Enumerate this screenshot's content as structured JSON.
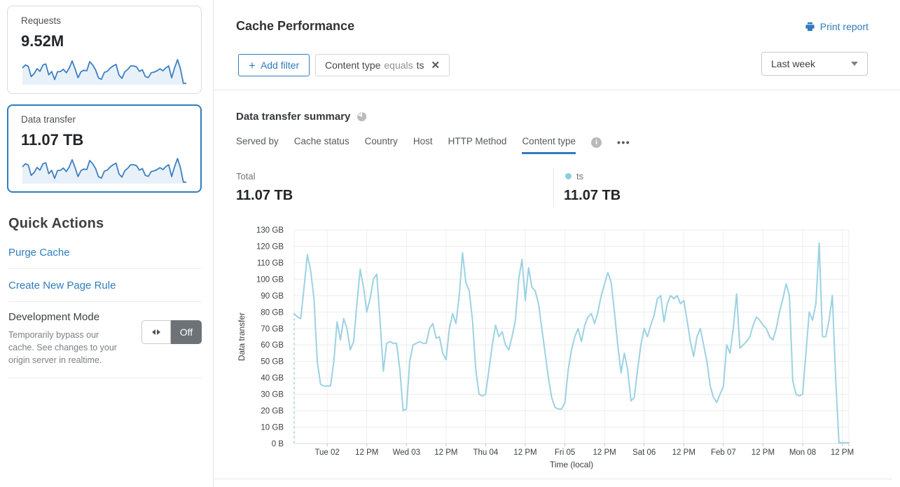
{
  "sidebar": {
    "metric_cards": [
      {
        "label": "Requests",
        "value": "9.52M",
        "sparkline": [
          79,
          95,
          88,
          35,
          50,
          76,
          62,
          95,
          100,
          44,
          61,
          20,
          60,
          61,
          73,
          55,
          79,
          116,
          75,
          29,
          60,
          68,
          65,
          112,
          95,
          70,
          28,
          21,
          57,
          62,
          79,
          90,
          98,
          43,
          26,
          60,
          72,
          90,
          90,
          85,
          62,
          70,
          35,
          30,
          55,
          58,
          65,
          75,
          65,
          80,
          90,
          29,
          80,
          122,
          75,
          0.5,
          0.5
        ]
      },
      {
        "label": "Data transfer",
        "value": "11.07 TB",
        "selected": true,
        "sparkline": [
          79,
          95,
          88,
          35,
          50,
          76,
          62,
          95,
          100,
          44,
          61,
          20,
          60,
          61,
          73,
          55,
          79,
          116,
          75,
          29,
          60,
          68,
          65,
          112,
          95,
          70,
          28,
          21,
          57,
          62,
          79,
          90,
          98,
          43,
          26,
          60,
          72,
          90,
          90,
          85,
          62,
          70,
          35,
          30,
          55,
          58,
          65,
          75,
          65,
          80,
          90,
          29,
          80,
          122,
          75,
          0.5,
          0.5
        ]
      }
    ],
    "quick_actions": {
      "title": "Quick Actions",
      "links": [
        {
          "label": "Purge Cache"
        },
        {
          "label": "Create New Page Rule"
        }
      ],
      "dev_mode": {
        "label": "Development Mode",
        "description": "Temporarily bypass our cache. See changes to your origin server in realtime.",
        "toggle_state": "Off"
      }
    }
  },
  "header": {
    "title": "Cache Performance",
    "print_label": "Print report",
    "time_range": "Last week"
  },
  "filters": {
    "plus": "+",
    "add_label": "Add filter",
    "chip": {
      "field": "Content type",
      "operator": "equals",
      "value": "ts",
      "close": "✕"
    }
  },
  "summary": {
    "title": "Data transfer summary",
    "tabs": [
      {
        "label": "Served by"
      },
      {
        "label": "Cache status"
      },
      {
        "label": "Country"
      },
      {
        "label": "Host"
      },
      {
        "label": "HTTP Method"
      },
      {
        "label": "Content type",
        "active": true
      }
    ],
    "info_glyph": "i",
    "more_label": "•••",
    "total_label": "Total",
    "total_value": "11.07 TB",
    "legend": {
      "series": "ts",
      "value": "11.07 TB",
      "color": "#8fccdf"
    }
  },
  "chart_data": {
    "type": "line",
    "title": "Data transfer summary",
    "series_name": "ts",
    "xlabel": "Time (local)",
    "ylabel": "Data transfer",
    "unit": "GB",
    "ylim": [
      0,
      130
    ],
    "grid": true,
    "y_tick_labels": [
      "0 B",
      "10 GB",
      "20 GB",
      "30 GB",
      "40 GB",
      "50 GB",
      "60 GB",
      "70 GB",
      "80 GB",
      "90 GB",
      "100 GB",
      "110 GB",
      "120 GB",
      "130 GB"
    ],
    "x_tick_labels": [
      "Tue 02",
      "12 PM",
      "Wed 03",
      "12 PM",
      "Thu 04",
      "12 PM",
      "Fri 05",
      "12 PM",
      "Sat 06",
      "12 PM",
      "Feb 07",
      "12 PM",
      "Mon 08",
      "12 PM"
    ],
    "tick_hours": [
      10,
      22,
      34,
      46,
      58,
      70,
      82,
      94,
      106,
      118,
      130,
      142,
      154,
      166
    ],
    "hours_total": 168,
    "line_color": "#9bd2e3",
    "start_dashed_line": true,
    "values_gb_hourly": [
      79,
      77,
      76,
      95,
      115,
      105,
      88,
      50,
      36,
      35,
      35,
      35,
      50,
      74,
      63,
      76,
      70,
      57,
      62,
      85,
      106,
      95,
      80,
      88,
      100,
      103,
      75,
      44,
      61,
      62,
      61,
      61,
      45,
      20,
      21,
      50,
      60,
      61,
      62,
      61,
      61,
      70,
      73,
      64,
      65,
      55,
      51,
      70,
      79,
      73,
      90,
      116,
      98,
      93,
      75,
      45,
      30,
      29,
      30,
      45,
      60,
      72,
      65,
      68,
      60,
      57,
      65,
      75,
      100,
      112,
      87,
      107,
      95,
      93,
      85,
      70,
      55,
      40,
      28,
      22,
      21,
      21,
      25,
      45,
      57,
      65,
      70,
      62,
      72,
      77,
      79,
      73,
      80,
      90,
      97,
      104,
      98,
      80,
      60,
      43,
      55,
      45,
      26,
      28,
      45,
      60,
      70,
      65,
      72,
      78,
      88,
      90,
      74,
      85,
      90,
      88,
      90,
      85,
      87,
      75,
      62,
      53,
      65,
      70,
      60,
      50,
      35,
      28,
      25,
      30,
      35,
      60,
      55,
      70,
      91,
      58,
      60,
      62,
      65,
      72,
      77,
      75,
      72,
      70,
      65,
      63,
      70,
      80,
      88,
      97,
      90,
      38,
      30,
      29,
      30,
      55,
      80,
      75,
      85,
      122,
      65,
      65,
      75,
      90,
      40,
      0.5,
      0.5,
      0.5,
      0.5
    ]
  },
  "colors": {
    "accent": "#2f7cbe",
    "spark_line": "#3d7fc1",
    "spark_fill": "#e8f1f9"
  }
}
